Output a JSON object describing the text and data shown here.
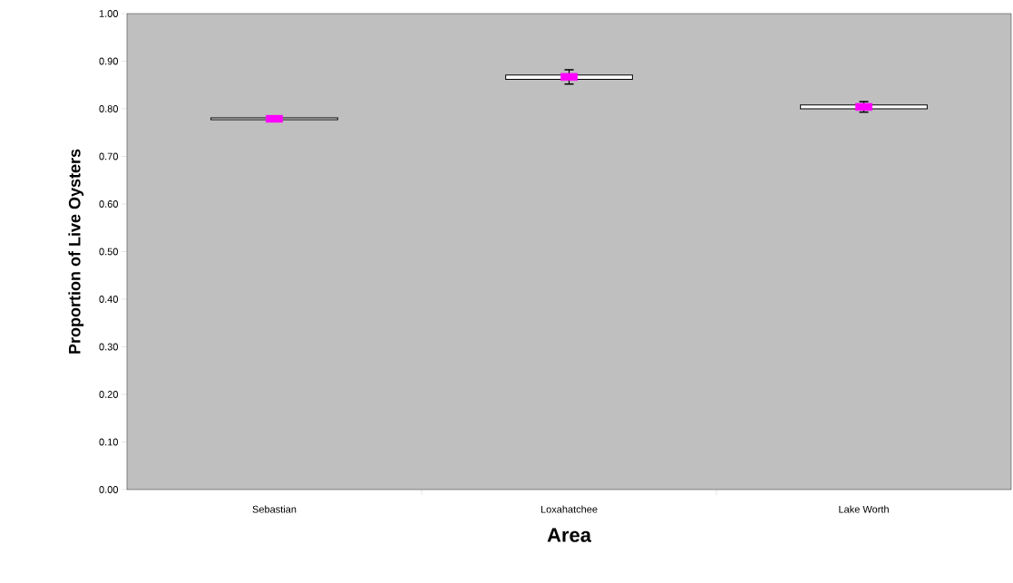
{
  "chart_data": {
    "type": "bar",
    "xlabel": "Area",
    "ylabel": "Proportion of Live Oysters",
    "categories": [
      "Sebastian",
      "Loxahatchee",
      "Lake Worth"
    ],
    "series": [
      {
        "color": "#ffffff",
        "base": [
          0.777,
          0.862,
          0.8
        ],
        "values": [
          0.004,
          0.009,
          0.008
        ]
      },
      {
        "type": "scatter",
        "color": "#ff00ff",
        "marker": "square",
        "values": [
          0.779,
          0.867,
          0.804
        ],
        "errors": [
          null,
          0.015,
          0.011
        ]
      }
    ],
    "ylim": [
      0,
      1
    ],
    "yticks": [
      {
        "value": 0,
        "label": "0.00"
      },
      {
        "value": 0.1,
        "label": "0.10"
      },
      {
        "value": 0.2,
        "label": "0.20"
      },
      {
        "value": 0.3,
        "label": "0.30"
      },
      {
        "value": 0.4,
        "label": "0.40"
      },
      {
        "value": 0.5,
        "label": "0.50"
      },
      {
        "value": 0.6,
        "label": "0.60"
      },
      {
        "value": 0.7,
        "label": "0.70"
      },
      {
        "value": 0.8,
        "label": "0.80"
      },
      {
        "value": 0.9,
        "label": "0.90"
      },
      {
        "value": 1,
        "label": "1.00"
      }
    ],
    "grid": false
  }
}
